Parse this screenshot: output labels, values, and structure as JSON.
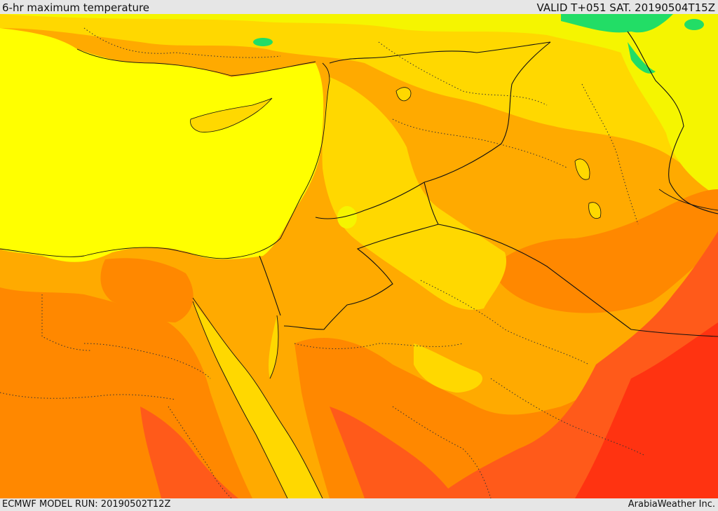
{
  "header": {
    "title": "6-hr maximum temperature",
    "valid_time": "VALID T+051 SAT. 20190504T15Z"
  },
  "footer": {
    "model_run": "ECMWF MODEL RUN: 20190502T12Z",
    "credit": "ArabiaWeather Inc."
  },
  "map": {
    "field": "6-hr maximum temperature",
    "palette": {
      "cool_green": "#22dd66",
      "mild": "#f5f500",
      "warm": "#ffd800",
      "hot": "#ffaa00",
      "very_hot": "#ff8800",
      "extreme": "#ff5a1a",
      "max": "#ff3311",
      "sea": "#ffff00"
    },
    "colors": {
      "border_line": "#111111"
    }
  }
}
